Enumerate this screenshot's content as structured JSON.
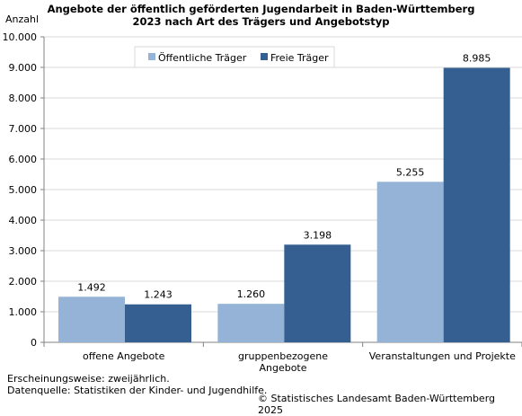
{
  "title_line1": "Angebote der öffentlich geförderten Jugendarbeit in Baden-Württemberg",
  "title_line2": "2023 nach Art des Trägers und Angebotstyp",
  "footer": {
    "note1": "Erscheinungsweise: zweijährlich.",
    "note2": "Datenquelle: Statistiken der Kinder- und Jugendhilfe.",
    "copyright": "© Statistisches Landesamt Baden-Württemberg 2025"
  },
  "chart_data": {
    "type": "bar",
    "title": "Angebote der öffentlich geförderten Jugendarbeit in Baden-Württemberg 2023 nach Art des Trägers und Angebotstyp",
    "ylabel": "Anzahl",
    "ylim": [
      0,
      10000
    ],
    "yticks": [
      "0",
      "1.000",
      "2.000",
      "3.000",
      "4.000",
      "5.000",
      "6.000",
      "7.000",
      "8.000",
      "9.000",
      "10.000"
    ],
    "categories": [
      [
        "offene Angebote"
      ],
      [
        "gruppenbezogene",
        "Angebote"
      ],
      [
        "Veranstaltungen und Projekte"
      ]
    ],
    "series": [
      {
        "name": "Öffentliche Träger",
        "color": "#95b3d7",
        "values": [
          1492,
          1260,
          5255
        ],
        "labels": [
          "1.492",
          "1.260",
          "5.255"
        ]
      },
      {
        "name": "Freie Träger",
        "color": "#355f91",
        "values": [
          1243,
          3198,
          8985
        ],
        "labels": [
          "1.243",
          "3.198",
          "8.985"
        ]
      }
    ],
    "legend_position": "top-center",
    "grid": true
  }
}
